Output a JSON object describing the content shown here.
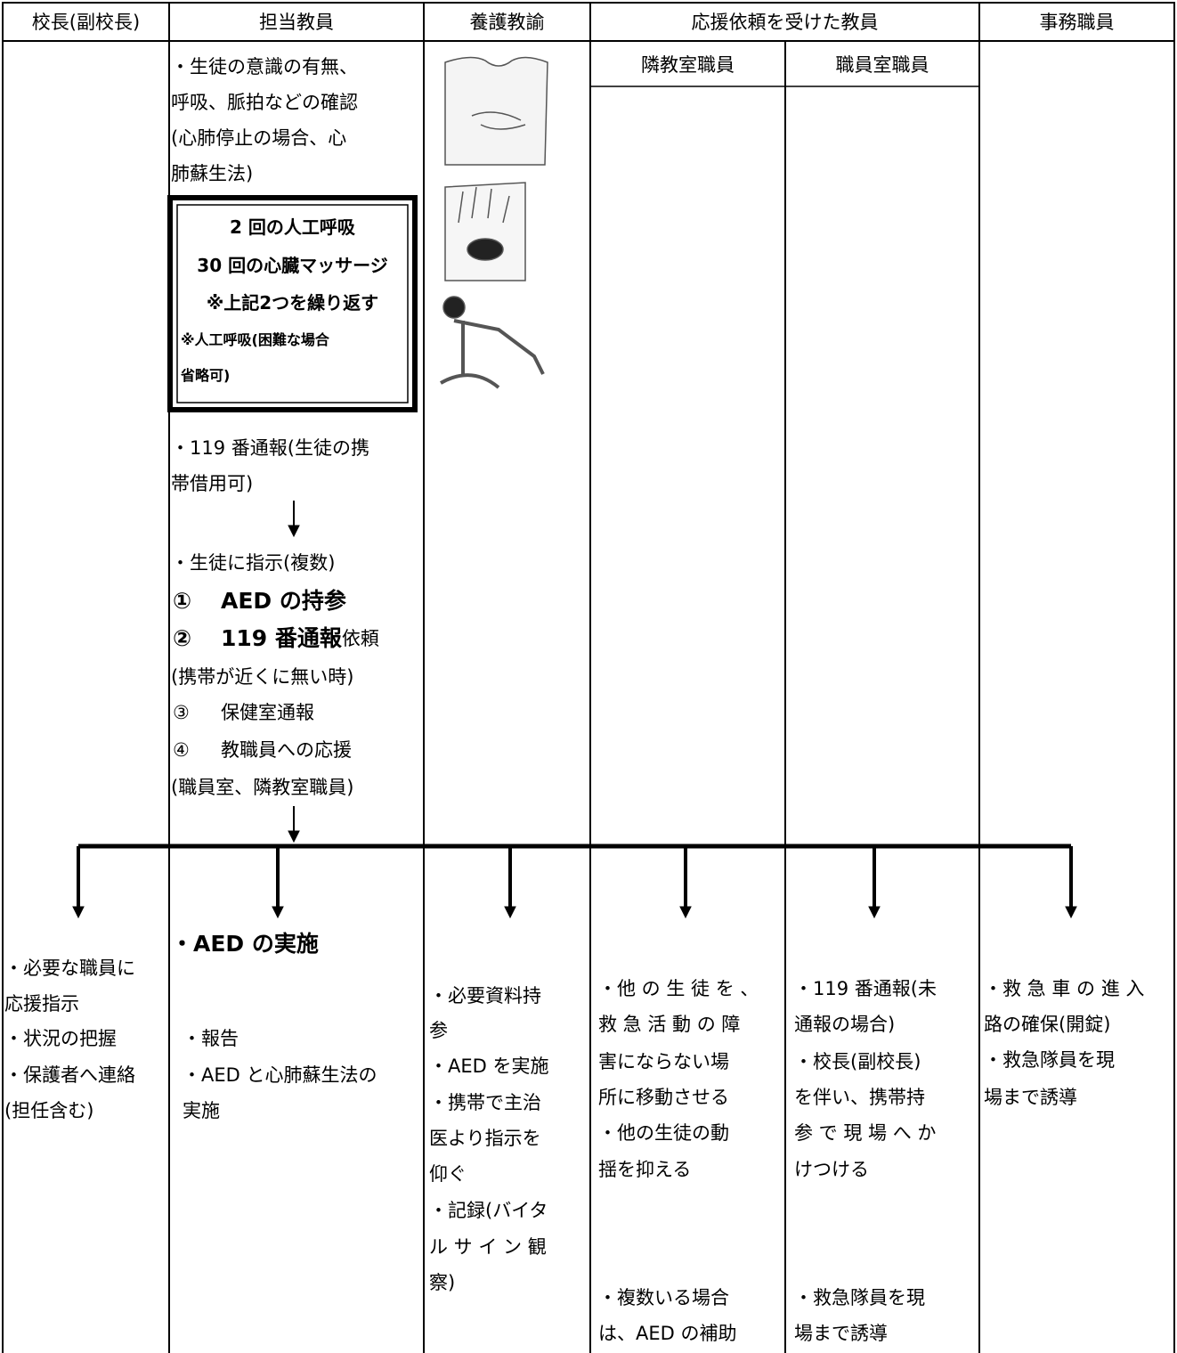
{
  "header": [
    "校長(副校長)",
    "担当教員",
    "養護教諭",
    "応援依頼を受けた教員",
    "事務職員"
  ],
  "subheader": [
    "隣教室職員",
    "職員室職員"
  ],
  "teacher_upper": {
    "lines": [
      "・生徒の意識の有無、",
      "呼吸、脈拍などの確認",
      "(心肺停止の場合、心",
      "肺蘇生法)",
      "・119 番通報(生徒の携",
      "帯借用可)",
      "・生徒に指示(複数)"
    ],
    "cpr_box": [
      "2 回の人工呼吸",
      "30 回の心臓マッサージ",
      "※上記2つを繰り返す",
      "※人工呼吸(困難な場合",
      "省略可)"
    ],
    "items": [
      [
        "①",
        "AED の持参"
      ],
      [
        "②",
        "119 番通報",
        "依頼"
      ],
      [
        "(携帯が近くに無い時)"
      ],
      [
        "③",
        "保健室通報"
      ],
      [
        "④",
        "教職員への応援"
      ],
      [
        "(職員室、隣教室職員)"
      ]
    ]
  },
  "lower": [
    [
      "・必要な職員に",
      "応援指示",
      "・状況の把握",
      "・保護者へ連絡",
      "(担任含む)"
    ],
    [
      "・AED の実施",
      "・報告",
      "・AED と心肺蘇生法の",
      "実施"
    ],
    [
      "・必要資料持",
      "参",
      "・AED を実施",
      "・携帯で主治",
      "医より指示を",
      "仰ぐ",
      "・記録(バイタ",
      "ル サ イ ン 観",
      "察)"
    ],
    [
      "・他 の 生 徒 を 、",
      "救 急 活 動 の 障",
      "害にならない場",
      "所に移動させる",
      "・他の生徒の動",
      "揺を抑える",
      "・複数いる場合",
      "は、AED の補助"
    ],
    [
      "・119 番通報(未",
      "通報の場合)",
      "・校長(副校長)",
      "を伴い、携帯持",
      "参 で 現 場 へ か",
      "けつける",
      "・救急隊員を現",
      "場まで誘導"
    ],
    [
      "・救 急 車 の 進 入",
      "路の確保(開錠)",
      "・救急隊員を現",
      "場まで誘導"
    ]
  ]
}
